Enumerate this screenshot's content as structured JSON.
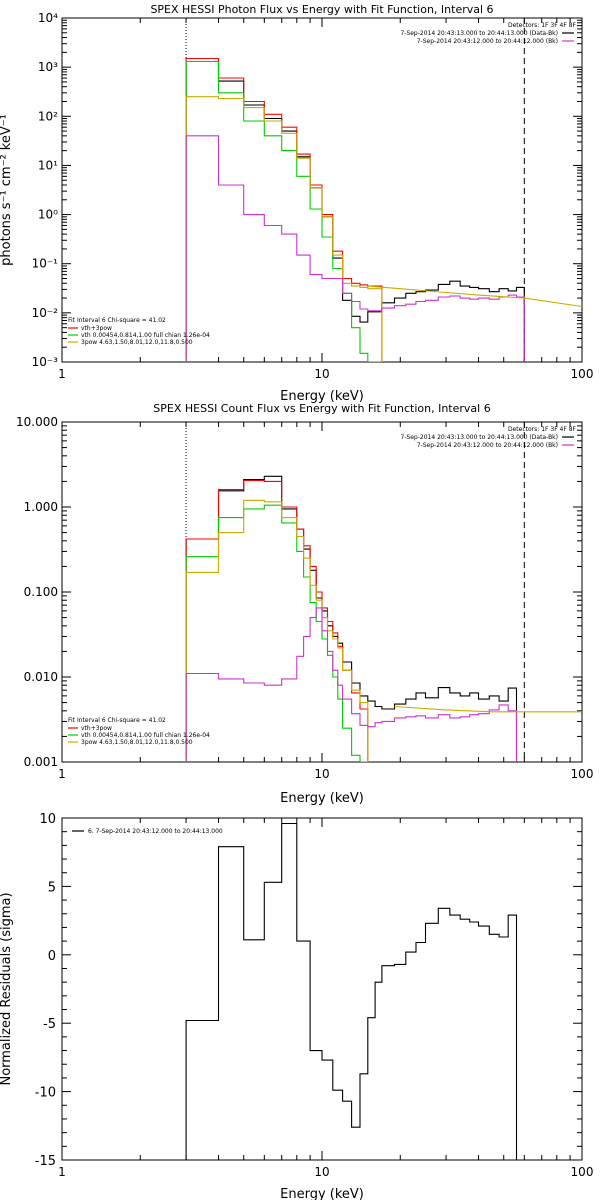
{
  "chart_data": [
    {
      "type": "line",
      "title": "SPEX HESSI Photon Flux vs Energy with Fit Function, Interval 6",
      "xlabel": "Energy (keV)",
      "ylabel": "photons s⁻¹ cm⁻² keV⁻¹",
      "xscale": "log",
      "yscale": "log",
      "xlim": [
        1,
        100
      ],
      "ylim": [
        0.001,
        10000
      ],
      "xticks": [
        "1",
        "10",
        "100"
      ],
      "yticks": [
        "10⁻³",
        "10⁻²",
        "10⁻¹",
        "10⁰",
        "10¹",
        "10²",
        "10³",
        "10⁴"
      ],
      "vlines": {
        "dotted": 3,
        "dashed": 60
      },
      "legend_right": {
        "header": "Detectors: 1F 3F 4F 8F",
        "items": [
          {
            "label": "7-Sep-2014 20:43:13.000 to 20:44:13.000 (Data-Bk)",
            "color": "#000000"
          },
          {
            "label": "7-Sep-2014 20:43:12.000 to 20:44:12.000 (Bk)",
            "color": "#cc33cc"
          }
        ]
      },
      "legend_left": {
        "header": "Fit Interval  6    Chi-square = 41.02",
        "items": [
          {
            "label": "vth+3pow",
            "color": "#ff0000"
          },
          {
            "label": "vth 0.00454,0.814,1.00  full chian 1.26e-04",
            "color": "#00cc00"
          },
          {
            "label": "3pow 4.63,1.50,8.01,12.0,11.8,0.500",
            "color": "#ccaa00"
          }
        ]
      },
      "edges": [
        3,
        4,
        5,
        6,
        7,
        8,
        9,
        10,
        11,
        12,
        13,
        14,
        15,
        17,
        19,
        21,
        23,
        25,
        28,
        31,
        34,
        37,
        40,
        44,
        48,
        52,
        56,
        60
      ],
      "series": [
        {
          "name": "Data-Bk",
          "color": "#000000",
          "values": [
            1300,
            520,
            170,
            90,
            50,
            15,
            3.5,
            0.9,
            0.13,
            0.018,
            0.0085,
            0.0065,
            0.0105,
            0.016,
            0.02,
            0.025,
            0.027,
            0.029,
            0.038,
            0.044,
            0.035,
            0.033,
            0.031,
            0.027,
            0.031,
            0.028,
            0.033
          ]
        },
        {
          "name": "vth+3pow",
          "color": "#ff0000",
          "values": [
            1500,
            600,
            200,
            110,
            60,
            17,
            4.0,
            1.0,
            0.18,
            0.05,
            0.04,
            0.037,
            0.035
          ]
        },
        {
          "name": "vth",
          "color": "#00cc00",
          "values": [
            1300,
            300,
            80,
            40,
            20,
            6,
            1.3,
            0.35,
            0.08,
            0.025,
            0.005,
            0.0015,
            0.0008
          ]
        },
        {
          "name": "3pow",
          "color": "#ccaa00",
          "values": [
            250,
            230,
            150,
            80,
            45,
            14,
            3.5,
            0.9,
            0.15,
            0.04,
            0.035,
            0.033,
            0.031
          ]
        },
        {
          "name": "Bk",
          "color": "#cc33cc",
          "values": [
            40,
            4,
            1.0,
            0.6,
            0.4,
            0.15,
            0.06,
            0.05,
            0.05,
            0.025,
            0.017,
            0.012,
            0.011,
            0.0125,
            0.014,
            0.015,
            0.017,
            0.018,
            0.021,
            0.022,
            0.02,
            0.019,
            0.02,
            0.019,
            0.021,
            0.023,
            0.021
          ]
        }
      ],
      "smooth": {
        "name": "3pow",
        "color": "#ccaa00",
        "points": [
          [
            15,
            0.035
          ],
          [
            20,
            0.031
          ],
          [
            30,
            0.026
          ],
          [
            40,
            0.023
          ],
          [
            60,
            0.02
          ],
          [
            100,
            0.0135
          ]
        ]
      }
    },
    {
      "type": "line",
      "title": "SPEX HESSI Count Flux vs Energy with Fit Function, Interval 6",
      "xlabel": "Energy (keV)",
      "ylabel": "",
      "xscale": "log",
      "yscale": "log",
      "xlim": [
        1,
        100
      ],
      "ylim": [
        0.001,
        10
      ],
      "xticks": [
        "1",
        "10",
        "100"
      ],
      "yticks": [
        "0.001",
        "0.010",
        "0.100",
        "1.000",
        "10.000"
      ],
      "vlines": {
        "dotted": 3,
        "dashed": 60
      },
      "legend_right": {
        "header": "Detectors: 1F 3F 4F 8F",
        "items": [
          {
            "label": "7-Sep-2014 20:43:13.000 to 20:44:13.000 (Data-Bk)",
            "color": "#000000"
          },
          {
            "label": "7-Sep-2014 20:43:12.000 to 20:44:12.000 (Bk)",
            "color": "#cc33cc"
          }
        ]
      },
      "legend_left": {
        "header": "Fit Interval  6    Chi-square = 41.02",
        "items": [
          {
            "label": "vth+3pow",
            "color": "#ff0000"
          },
          {
            "label": "vth 0.00454,0.814,1.00  full chian 1.26e-04",
            "color": "#00cc00"
          },
          {
            "label": "3pow 4.63,1.50,8.01,12.0,11.8,0.500",
            "color": "#ccaa00"
          }
        ]
      },
      "edges": [
        3,
        4,
        5,
        6,
        7,
        8,
        8.5,
        9,
        9.5,
        10,
        10.5,
        11,
        11.5,
        12,
        13,
        14,
        15,
        16,
        17,
        19,
        21,
        23,
        25,
        28,
        31,
        34,
        37,
        40,
        44,
        48,
        52,
        56,
        60
      ],
      "series": [
        {
          "name": "Data-Bk",
          "color": "#000000",
          "values": [
            0.42,
            1.55,
            2.1,
            2.3,
            0.95,
            0.55,
            0.32,
            0.18,
            0.085,
            0.06,
            0.04,
            0.03,
            0.025,
            0.015,
            0.0085,
            0.006,
            0.0052,
            0.0045,
            0.0042,
            0.0048,
            0.0055,
            0.0065,
            0.0057,
            0.0075,
            0.0065,
            0.006,
            0.0065,
            0.0055,
            0.006,
            0.0052,
            0.0074
          ]
        },
        {
          "name": "vth+3pow",
          "color": "#ff0000",
          "values": [
            0.42,
            1.6,
            2.05,
            2.0,
            1.0,
            0.55,
            0.35,
            0.2,
            0.1,
            0.065,
            0.045,
            0.033,
            0.023,
            0.012,
            0.0065,
            0.0042
          ]
        },
        {
          "name": "vth",
          "color": "#00cc00",
          "values": [
            0.26,
            0.75,
            0.95,
            1.05,
            0.65,
            0.3,
            0.15,
            0.075,
            0.045,
            0.028,
            0.018,
            0.01,
            0.0055,
            0.0025,
            0.0012,
            0.0007
          ]
        },
        {
          "name": "3pow",
          "color": "#ccaa00",
          "values": [
            0.17,
            0.5,
            1.2,
            1.15,
            0.75,
            0.45,
            0.25,
            0.12,
            0.08,
            0.05,
            0.035,
            0.028,
            0.022,
            0.012,
            0.007,
            0.005
          ]
        },
        {
          "name": "Bk",
          "color": "#cc33cc",
          "values": [
            0.011,
            0.0095,
            0.0085,
            0.008,
            0.0095,
            0.0175,
            0.03,
            0.05,
            0.065,
            0.035,
            0.02,
            0.012,
            0.008,
            0.0055,
            0.0037,
            0.0027,
            0.0026,
            0.0029,
            0.003,
            0.0033,
            0.0034,
            0.0035,
            0.0033,
            0.0036,
            0.0033,
            0.0034,
            0.0036,
            0.0037,
            0.0041,
            0.0047,
            0.004
          ]
        }
      ],
      "smooth": {
        "name": "3pow",
        "color": "#ccaa00",
        "points": [
          [
            19,
            0.0045
          ],
          [
            30,
            0.0041
          ],
          [
            45,
            0.0039
          ],
          [
            60,
            0.0039
          ],
          [
            100,
            0.0039
          ]
        ]
      }
    },
    {
      "type": "line",
      "title": "",
      "xlabel": "Energy (keV)",
      "ylabel": "Normalized Residuals (sigma)",
      "xscale": "log",
      "yscale": "linear",
      "xlim": [
        1,
        100
      ],
      "ylim": [
        -15,
        10
      ],
      "xticks": [
        "1",
        "10",
        "100"
      ],
      "yticks": [
        "-15",
        "-10",
        "-5",
        "0",
        "5",
        "10"
      ],
      "legend": {
        "label": "6.  7-Sep-2014 20:43:12.000 to 20:44:13.000",
        "color": "#000000"
      },
      "edges": [
        3,
        4,
        5,
        6,
        7,
        8,
        9,
        10,
        11,
        12,
        13,
        14,
        15,
        16,
        17,
        19,
        21,
        23,
        25,
        28,
        31,
        34,
        37,
        40,
        44,
        48,
        52,
        56,
        60
      ],
      "series": [
        {
          "name": "residuals",
          "color": "#000000",
          "values": [
            -4.8,
            7.9,
            1.1,
            5.3,
            9.6,
            1.0,
            -7.0,
            -7.7,
            -9.9,
            -10.7,
            -12.6,
            -8.7,
            -4.6,
            -2.0,
            -0.8,
            -0.7,
            0.2,
            0.9,
            2.3,
            3.4,
            2.9,
            2.6,
            2.4,
            2.1,
            1.5,
            1.3,
            2.9,
            -15
          ]
        }
      ]
    }
  ]
}
